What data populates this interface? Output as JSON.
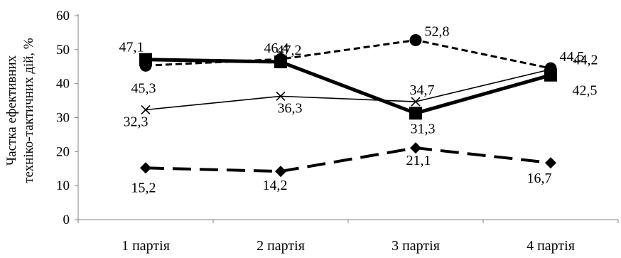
{
  "chart_data": {
    "type": "line",
    "title": "",
    "xlabel": "",
    "ylabel_lines": [
      "Частка ефективних",
      "техніко-тактичних дій, %"
    ],
    "ylim": [
      0,
      60
    ],
    "y_ticks": [
      "0",
      "10",
      "20",
      "30",
      "40",
      "50",
      "60"
    ],
    "categories": [
      "1 партія",
      "2 партія",
      "3 партія",
      "4 партія"
    ],
    "grid": false,
    "legend": "none",
    "series": [
      {
        "marker": "circle",
        "line_style": "dashed-short",
        "color": "#000000",
        "values": [
          45.3,
          47.2,
          52.8,
          44.5
        ],
        "labels": [
          "45,3",
          "47,2",
          "52,8",
          "44,5"
        ]
      },
      {
        "marker": "square",
        "line_style": "solid-thick",
        "color": "#000000",
        "values": [
          47.1,
          46.4,
          31.3,
          42.5
        ],
        "labels": [
          "47,1",
          "46,4",
          "31,3",
          "42,5"
        ]
      },
      {
        "marker": "x",
        "line_style": "solid-thin",
        "color": "#000000",
        "values": [
          32.3,
          36.3,
          34.7,
          44.2
        ],
        "labels": [
          "32,3",
          "36,3",
          "34,7",
          "44,2"
        ]
      },
      {
        "marker": "diamond",
        "line_style": "dashed-long",
        "color": "#000000",
        "values": [
          15.2,
          14.2,
          21.1,
          16.7
        ],
        "labels": [
          "15,2",
          "14,2",
          "21,1",
          "16,7"
        ]
      }
    ]
  }
}
